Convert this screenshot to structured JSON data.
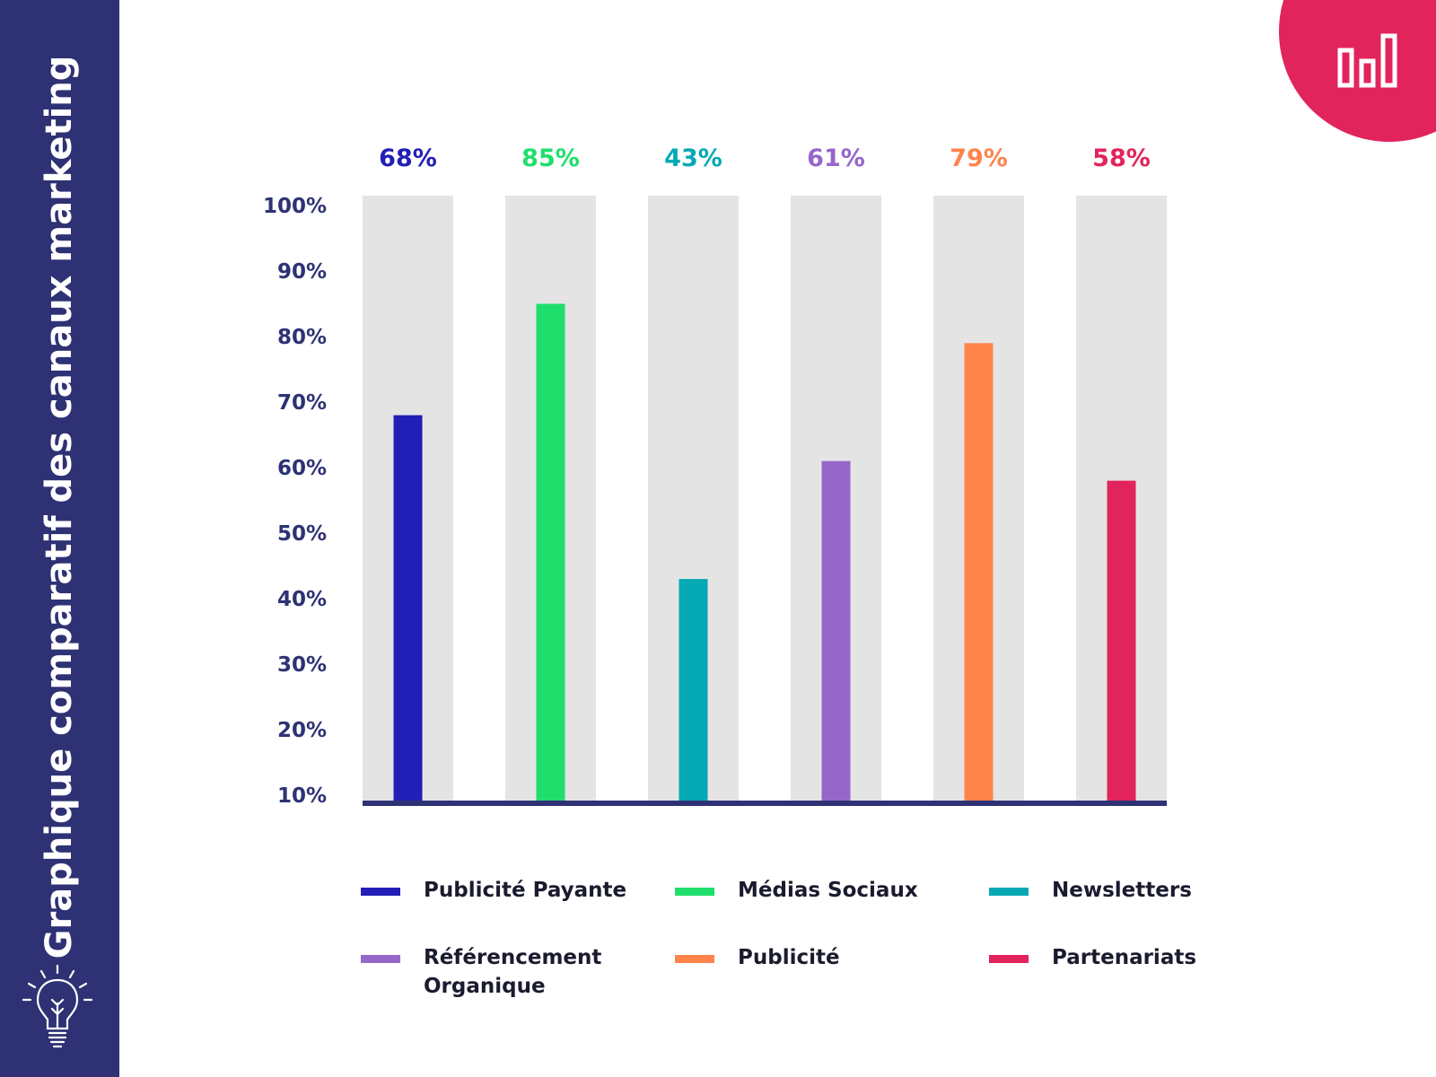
{
  "sidebar": {
    "title": "Graphique comparatif des canaux marketing",
    "icon": "lightbulb-icon"
  },
  "corner_badge": {
    "icon": "bar-chart-icon",
    "color": "#e2245c"
  },
  "colors": {
    "sidebar_bg": "#2e3274",
    "axis_text": "#2e3274",
    "track": "#e5e4e5",
    "baseline": "#2e3274"
  },
  "chart_data": {
    "type": "bar",
    "categories": [
      "Publicité Payante",
      "Médias Sociaux",
      "Newsletters",
      "Référencement Organique",
      "Publicité",
      "Partenariats"
    ],
    "value_labels": [
      "68%",
      "85%",
      "43%",
      "61%",
      "79%",
      "58%"
    ],
    "values": [
      68,
      85,
      43,
      61,
      79,
      58
    ],
    "colors": [
      "#221fb6",
      "#20de6b",
      "#04a9b4",
      "#9766c9",
      "#fe844c",
      "#e2245c"
    ],
    "y_ticks": [
      "100%",
      "90%",
      "80%",
      "70%",
      "60%",
      "50%",
      "40%",
      "30%",
      "20%",
      "10%"
    ],
    "ylim": [
      10,
      100
    ],
    "grid": false,
    "legend_position": "bottom"
  }
}
